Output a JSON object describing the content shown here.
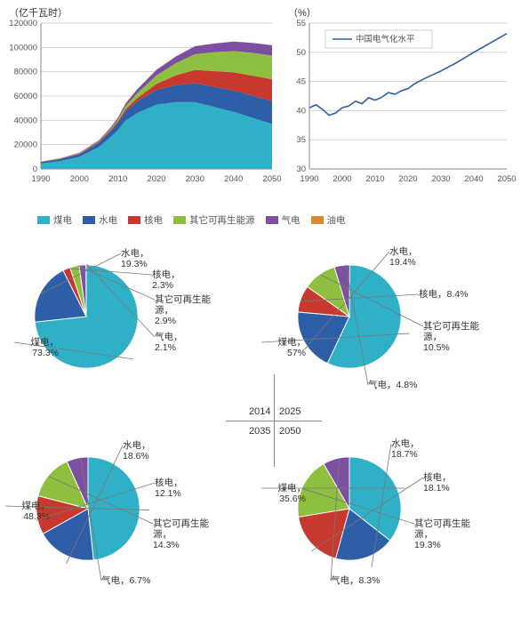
{
  "colors": {
    "coal": "#2fb0c7",
    "hydro": "#2f5ea8",
    "nuclear": "#c7392e",
    "renew": "#8fbf3f",
    "gas": "#7c4fa0",
    "oil": "#d88a2f",
    "grid": "#d0d0d0",
    "axis": "#888888",
    "line_color": "#2f5ea8",
    "bg": "#ffffff"
  },
  "area_chart": {
    "y_title": "（亿千瓦时）",
    "x_years": [
      1990,
      2000,
      2010,
      2020,
      2030,
      2040,
      2050
    ],
    "y_ticks": [
      0,
      20000,
      40000,
      60000,
      80000,
      100000,
      120000
    ],
    "legend": [
      {
        "label": "煤电",
        "color": "#2fb0c7"
      },
      {
        "label": "水电",
        "color": "#2f5ea8"
      },
      {
        "label": "核电",
        "color": "#c7392e"
      },
      {
        "label": "其它可再生能源",
        "color": "#8fbf3f"
      },
      {
        "label": "气电",
        "color": "#7c4fa0"
      },
      {
        "label": "油电",
        "color": "#d88a2f"
      }
    ],
    "x_vals": [
      1990,
      1995,
      2000,
      2005,
      2008,
      2010,
      2012,
      2015,
      2020,
      2025,
      2030,
      2035,
      2040,
      2045,
      2050
    ],
    "series": {
      "coal": [
        4500,
        6500,
        10000,
        18000,
        26000,
        32000,
        40000,
        46000,
        53000,
        55000,
        55000,
        51000,
        47000,
        42000,
        37000
      ],
      "hydro": [
        1200,
        1600,
        2200,
        3500,
        4800,
        6000,
        7500,
        9500,
        12000,
        14000,
        15500,
        16500,
        17500,
        18200,
        18800
      ],
      "nuclear": [
        0,
        100,
        300,
        600,
        900,
        1200,
        1800,
        2800,
        5000,
        8000,
        11000,
        13000,
        15000,
        16500,
        18000
      ],
      "renew": [
        0,
        50,
        150,
        400,
        800,
        1400,
        2400,
        4000,
        7000,
        10000,
        13000,
        15500,
        17500,
        18800,
        19500
      ],
      "gas": [
        150,
        250,
        400,
        700,
        1100,
        1500,
        2200,
        3200,
        4500,
        5500,
        6500,
        7200,
        7800,
        8200,
        8500
      ],
      "oil": [
        300,
        350,
        400,
        400,
        350,
        300,
        250,
        200,
        150,
        100,
        80,
        60,
        50,
        40,
        30
      ]
    }
  },
  "line_chart": {
    "y_title": "（%）",
    "legend_label": "中国电气化水平",
    "x_years": [
      1990,
      2000,
      2010,
      2020,
      2030,
      2040,
      2050
    ],
    "y_ticks": [
      30,
      35,
      40,
      45,
      50,
      55
    ],
    "x_vals": [
      1990,
      1992,
      1994,
      1996,
      1998,
      2000,
      2002,
      2004,
      2006,
      2008,
      2010,
      2012,
      2014,
      2016,
      2018,
      2020,
      2022,
      2025,
      2030,
      2035,
      2040,
      2045,
      2050
    ],
    "y_vals": [
      40.5,
      41.0,
      40.2,
      39.2,
      39.6,
      40.5,
      40.8,
      41.6,
      41.2,
      42.2,
      41.8,
      42.3,
      43.1,
      42.8,
      43.4,
      43.8,
      44.6,
      45.5,
      46.8,
      48.3,
      50.0,
      51.6,
      53.2
    ]
  },
  "pies": {
    "center_labels": {
      "tl": "2014",
      "tr": "2025",
      "bl": "2035",
      "br": "2050"
    },
    "sets": {
      "2014": [
        {
          "label": "煤电",
          "pct": 73.3,
          "color": "#2fb0c7"
        },
        {
          "label": "水电",
          "pct": 19.3,
          "color": "#2f5ea8"
        },
        {
          "label": "核电",
          "pct": 2.3,
          "color": "#c7392e"
        },
        {
          "label": "其它可再生能源",
          "pct": 2.9,
          "color": "#8fbf3f"
        },
        {
          "label": "气电",
          "pct": 2.1,
          "color": "#7c4fa0"
        }
      ],
      "2025": [
        {
          "label": "煤电",
          "pct": 57.0,
          "color": "#2fb0c7"
        },
        {
          "label": "水电",
          "pct": 19.4,
          "color": "#2f5ea8"
        },
        {
          "label": "核电",
          "pct": 8.4,
          "color": "#c7392e"
        },
        {
          "label": "其它可再生能源",
          "pct": 10.5,
          "color": "#8fbf3f"
        },
        {
          "label": "气电",
          "pct": 4.8,
          "color": "#7c4fa0"
        }
      ],
      "2035": [
        {
          "label": "煤电",
          "pct": 48.3,
          "color": "#2fb0c7"
        },
        {
          "label": "水电",
          "pct": 18.6,
          "color": "#2f5ea8"
        },
        {
          "label": "核电",
          "pct": 12.1,
          "color": "#c7392e"
        },
        {
          "label": "其它可再生能源",
          "pct": 14.3,
          "color": "#8fbf3f"
        },
        {
          "label": "气电",
          "pct": 6.7,
          "color": "#7c4fa0"
        }
      ],
      "2050": [
        {
          "label": "煤电",
          "pct": 35.6,
          "color": "#2fb0c7"
        },
        {
          "label": "水电",
          "pct": 18.7,
          "color": "#2f5ea8"
        },
        {
          "label": "核电",
          "pct": 18.1,
          "color": "#c7392e"
        },
        {
          "label": "其它可再生能源",
          "pct": 19.3,
          "color": "#8fbf3f"
        },
        {
          "label": "气电",
          "pct": 8.3,
          "color": "#7c4fa0"
        }
      ]
    }
  }
}
